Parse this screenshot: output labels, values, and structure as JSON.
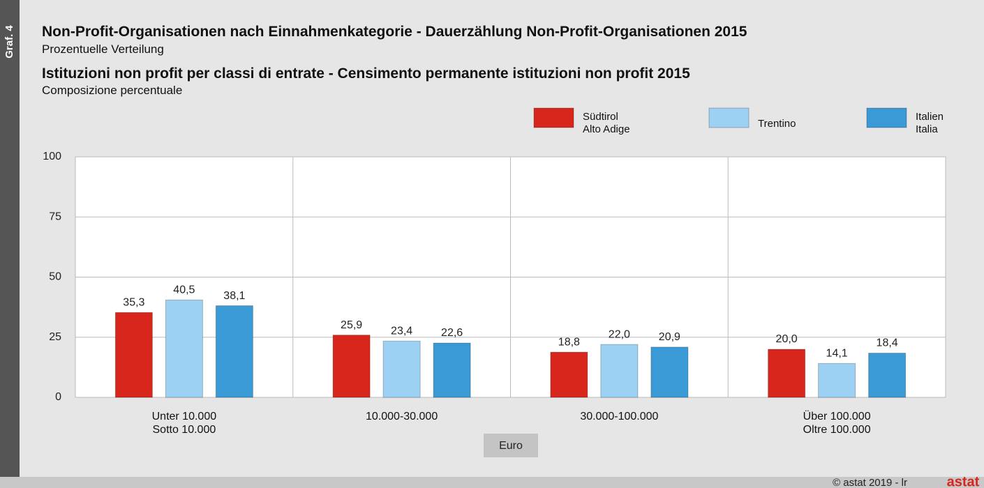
{
  "chart_data": {
    "type": "bar",
    "side_label": "Graf. 4",
    "title": "Non-Profit-Organisationen nach Einnahmenkategorie - Dauerzählung Non-Profit-Organisationen 2015",
    "subtitle": "Prozentuelle Verteilung",
    "title2": "Istituzioni non profit per classi di entrate - Censimento permanente istituzioni non profit 2015",
    "subtitle2": "Composizione percentuale",
    "x_label": "Euro",
    "source": "© astat 2019 - lr",
    "logo": "astat",
    "categories": [
      "Unter 10.000\nSotto 10.000",
      "10.000-30.000",
      "30.000-100.000",
      "Über 100.000\nOltre 100.000"
    ],
    "series": [
      {
        "name": "Südtirol\nAlto Adige",
        "color": "#d9261c",
        "values": [
          35.3,
          25.9,
          18.8,
          20.0
        ],
        "value_labels": [
          "35,3",
          "25,9",
          "18,8",
          "20,0"
        ]
      },
      {
        "name": "Trentino",
        "color": "#9dd1f4",
        "values": [
          40.5,
          23.4,
          22.0,
          14.1
        ],
        "value_labels": [
          "40,5",
          "23,4",
          "22,0",
          "14,1"
        ]
      },
      {
        "name": "Italien\nItalia",
        "color": "#3a9ad6",
        "values": [
          38.1,
          22.6,
          20.9,
          18.4
        ],
        "value_labels": [
          "38,1",
          "22,6",
          "20,9",
          "18,4"
        ]
      }
    ],
    "ylim": [
      0,
      100
    ],
    "yticks": [
      0,
      25,
      50,
      75,
      100
    ],
    "grid": true
  }
}
